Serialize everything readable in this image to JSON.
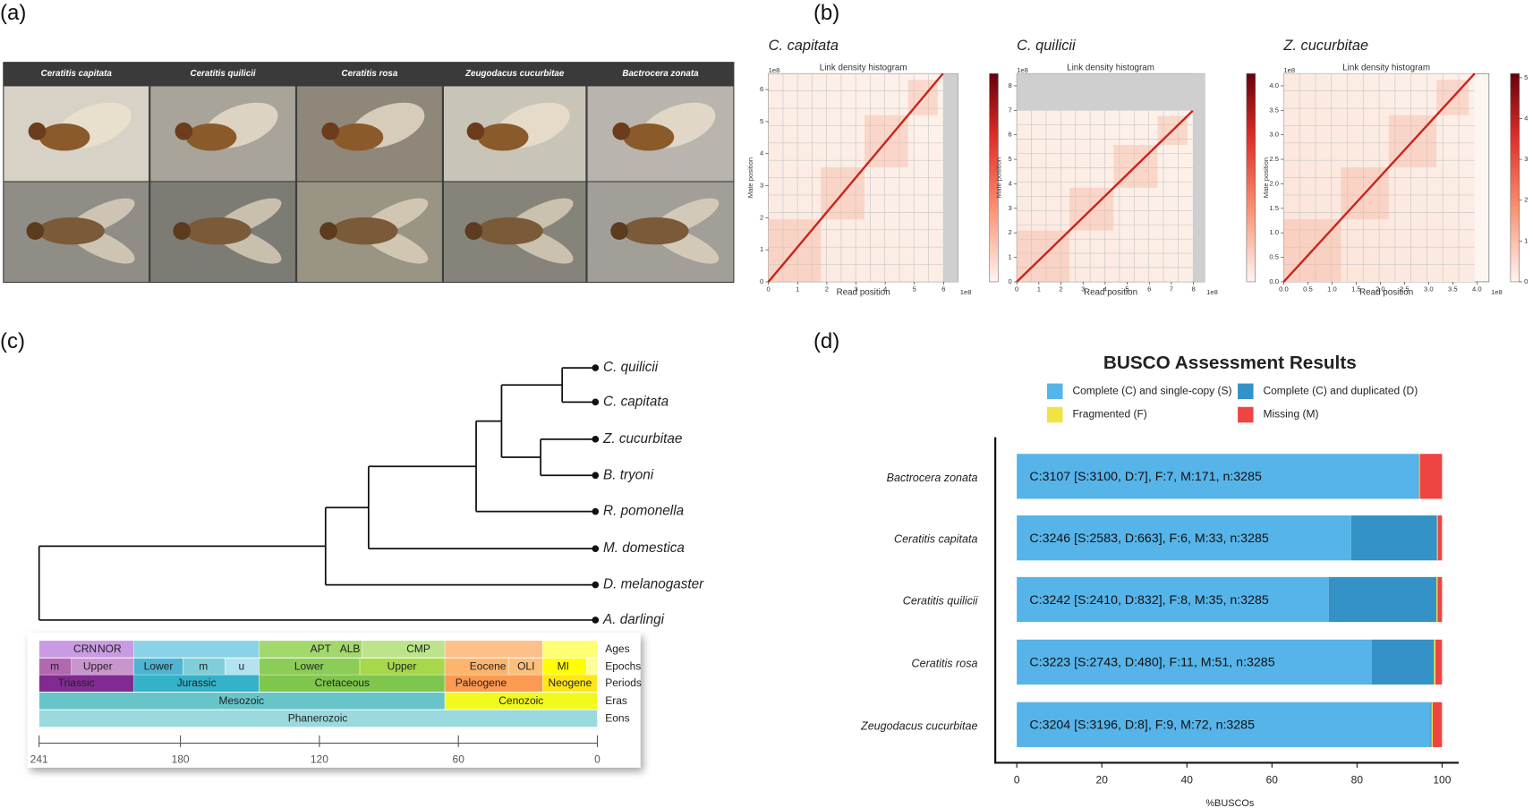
{
  "panel_labels": [
    "(a)",
    "(b)",
    "(c)",
    "(d)"
  ],
  "photos": {
    "species": [
      "Ceratitis capitata",
      "Ceratitis quilicii",
      "Ceratitis rosa",
      "Zeugodacus cucurbitae",
      "Bactrocera zonata"
    ]
  },
  "hic_maps": [
    {
      "title": "C. capitata",
      "subtitle": "Link density histogram",
      "scale_x": "1e8",
      "scale_y": "1e8",
      "xlabel": "Read position",
      "ylabel": "Mate position",
      "xticks": [
        "0",
        "1",
        "2",
        "3",
        "4",
        "5",
        "6"
      ],
      "yticks": [
        "0",
        "1",
        "2",
        "3",
        "4",
        "5",
        "6"
      ]
    },
    {
      "title": "C. quilicii",
      "subtitle": "Link density histogram",
      "scale_x": "1e8",
      "scale_y": "1e8",
      "xlabel": "Read position",
      "ylabel": "Mate position",
      "xticks": [
        "0",
        "1",
        "2",
        "3",
        "4",
        "5",
        "6",
        "7",
        "8"
      ],
      "yticks": [
        "0",
        "1",
        "2",
        "3",
        "4",
        "5",
        "6",
        "7",
        "8"
      ]
    },
    {
      "title": "Z. cucurbitae",
      "subtitle": "Link density histogram",
      "scale_x": "1e8",
      "scale_y": "1e8",
      "xlabel": "Read position",
      "ylabel": "Mate position",
      "xticks": [
        "0.0",
        "0.5",
        "1.0",
        "1.5",
        "2.0",
        "2.5",
        "3.0",
        "3.5",
        "4.0"
      ],
      "yticks": [
        "0.0",
        "0.5",
        "1.0",
        "1.5",
        "2.0",
        "2.5",
        "3.0",
        "3.5",
        "4.0"
      ],
      "colorbar_ticks": [
        "0",
        "1",
        "2",
        "3",
        "4",
        "5"
      ]
    }
  ],
  "tree": {
    "leaves": [
      {
        "name": "C. quilicii",
        "color": "#c0460f"
      },
      {
        "name": "C. capitata",
        "color": "#c0460f"
      },
      {
        "name": "Z. cucurbitae",
        "color": "#c0460f"
      },
      {
        "name": "B. tryoni",
        "color": "#111111"
      },
      {
        "name": "R. pomonella",
        "color": "#111111"
      },
      {
        "name": "M. domestica",
        "color": "#111111"
      },
      {
        "name": "D. melanogaster",
        "color": "#111111"
      },
      {
        "name": "A. darlingi",
        "color": "#111111"
      }
    ]
  },
  "timescale": {
    "row_labels": [
      "Ages",
      "Epochs",
      "Periods",
      "Eras",
      "Eons"
    ],
    "ages": [
      "CRN",
      "NOR",
      "APT",
      "ALB",
      "CMP"
    ],
    "epochs": [
      "m",
      "Upper",
      "Lower",
      "m",
      "u",
      "Lower",
      "Upper",
      "Eocene",
      "OLI",
      "MI"
    ],
    "periods": [
      "Triassic",
      "Jurassic",
      "Cretaceous",
      "Paleogene",
      "Neogene"
    ],
    "eras": [
      "Mesozoic",
      "Cenozoic"
    ],
    "eons": [
      "Phanerozoic"
    ],
    "axis_ticks": [
      241,
      180,
      120,
      60,
      0
    ]
  },
  "chart_data": {
    "type": "stacked-barh",
    "title": "BUSCO Assessment Results",
    "xlabel": "%BUSCOs",
    "categories": [
      "Bactrocera zonata",
      "Ceratitis capitata",
      "Ceratitis quilicii",
      "Ceratitis rosa",
      "Zeugodacus cucurbitae"
    ],
    "series": [
      {
        "name": "Complete (C) and single-copy (S)",
        "color": "#56b4e9",
        "values": [
          94.37,
          78.63,
          73.36,
          83.5,
          97.29
        ]
      },
      {
        "name": "Complete (C) and duplicated (D)",
        "color": "#3492c7",
        "values": [
          0.21,
          20.18,
          25.33,
          14.61,
          0.24
        ]
      },
      {
        "name": "Fragmented (F)",
        "color": "#f0e442",
        "values": [
          0.21,
          0.18,
          0.24,
          0.33,
          0.27
        ]
      },
      {
        "name": "Missing (M)",
        "color": "#f04442",
        "values": [
          5.21,
          1.0,
          1.07,
          1.55,
          2.19
        ]
      }
    ],
    "annotations": [
      "C:3107 [S:3100, D:7], F:7, M:171, n:3285",
      "C:3246 [S:2583, D:663], F:6, M:33, n:3285",
      "C:3242 [S:2410, D:832], F:8, M:35, n:3285",
      "C:3223 [S:2743, D:480], F:11, M:51, n:3285",
      "C:3204 [S:3196, D:8], F:9, M:72, n:3285"
    ],
    "xlim": [
      0,
      100
    ],
    "xticks": [
      0,
      20,
      40,
      60,
      80,
      100
    ]
  }
}
